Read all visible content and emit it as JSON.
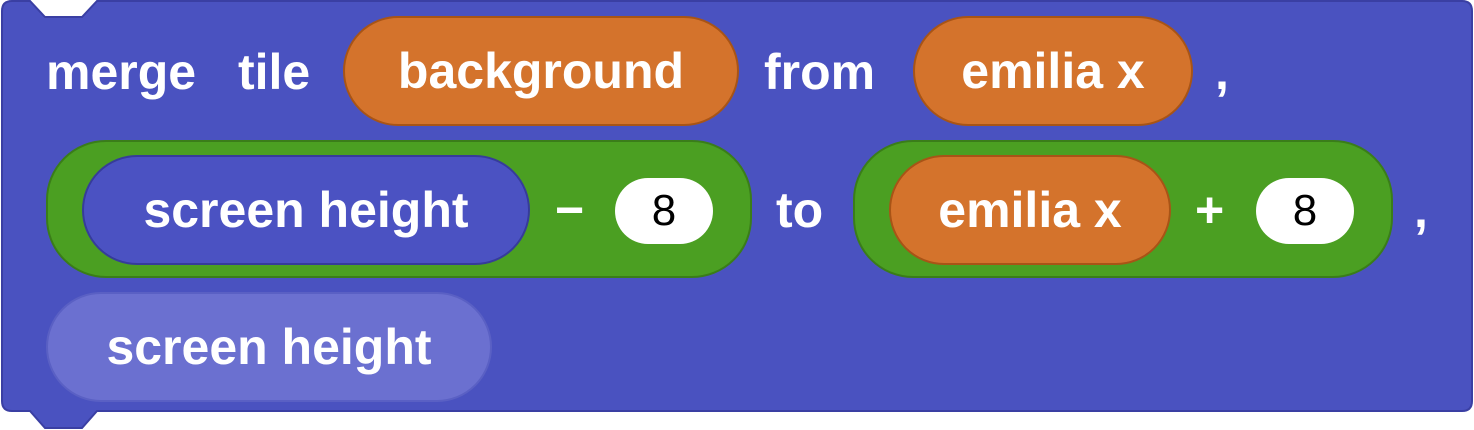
{
  "block": {
    "keyword_merge": "merge",
    "keyword_tile": "tile",
    "arg_layer": "background",
    "keyword_from": "from",
    "arg_from_x": "emilia x",
    "comma_1": ",",
    "from_y": {
      "left_reporter": "screen height",
      "operator": "−",
      "operand": "8"
    },
    "keyword_to": "to",
    "to_x": {
      "left_reporter": "emilia x",
      "operator": "+",
      "operand": "8"
    },
    "comma_2": ",",
    "arg_to_y": "screen height"
  },
  "colors": {
    "block_fill": "#4a52c0",
    "block_border": "#3a3fa3",
    "variable_orange": "#d4732c",
    "operator_green": "#4b9f22",
    "sensing_blue": "#4b52c2",
    "ghost_reporter": "#6b70d0"
  }
}
